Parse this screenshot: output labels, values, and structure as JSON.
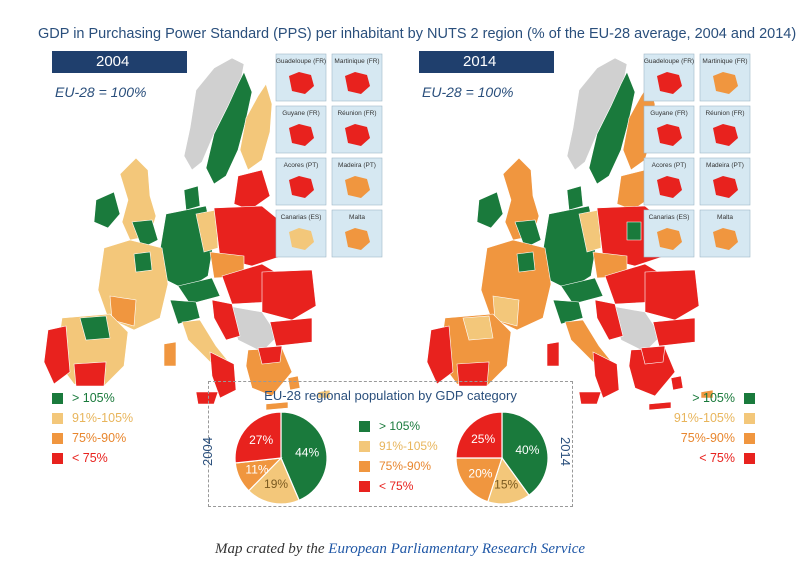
{
  "title": "GDP in Purchasing Power Standard (PPS) per inhabitant by NUTS 2 region (% of the EU-28 average, 2004 and 2014)",
  "colors": {
    "gt105": "#1a7a3c",
    "c91_105": "#f3c77a",
    "c75_90": "#f0963f",
    "lt75": "#e8221e",
    "nodata": "#d0d0d0",
    "inset_bg": "#d6e8f2",
    "badge": "#1f3f6d",
    "text_blue": "#2a4f7c"
  },
  "maps": [
    {
      "year": "2004",
      "note": "EU-28 = 100%",
      "insets": [
        {
          "label": "Guadeloupe (FR)",
          "color": "lt75"
        },
        {
          "label": "Martinique (FR)",
          "color": "lt75"
        },
        {
          "label": "Guyane (FR)",
          "color": "lt75"
        },
        {
          "label": "Réunion (FR)",
          "color": "lt75"
        },
        {
          "label": "Acores (PT)",
          "color": "lt75"
        },
        {
          "label": "Madeira (PT)",
          "color": "c75_90"
        },
        {
          "label": "Canarias (ES)",
          "color": "c91_105"
        },
        {
          "label": "Malta",
          "color": "c75_90"
        }
      ]
    },
    {
      "year": "2014",
      "note": "EU-28 = 100%",
      "insets": [
        {
          "label": "Guadeloupe (FR)",
          "color": "lt75"
        },
        {
          "label": "Martinique (FR)",
          "color": "c75_90"
        },
        {
          "label": "Guyane (FR)",
          "color": "lt75"
        },
        {
          "label": "Réunion (FR)",
          "color": "lt75"
        },
        {
          "label": "Acores (PT)",
          "color": "lt75"
        },
        {
          "label": "Madeira (PT)",
          "color": "lt75"
        },
        {
          "label": "Canarias (ES)",
          "color": "c75_90"
        },
        {
          "label": "Malta",
          "color": "c75_90"
        }
      ]
    }
  ],
  "legend": [
    {
      "label": "> 105%",
      "color": "gt105"
    },
    {
      "label": "91%-105%",
      "color": "c91_105"
    },
    {
      "label": "75%-90%",
      "color": "c75_90"
    },
    {
      "label": "< 75%",
      "color": "lt75"
    }
  ],
  "population": {
    "title": "EU-28 regional population by GDP category",
    "pies": [
      {
        "year": "2004",
        "slices": [
          {
            "category": "gt105",
            "value": 44,
            "label": "44%"
          },
          {
            "category": "c91_105",
            "value": 19,
            "label": "19%"
          },
          {
            "category": "c75_90",
            "value": 11,
            "label": "11%"
          },
          {
            "category": "lt75",
            "value": 27,
            "label": "27%"
          }
        ]
      },
      {
        "year": "2014",
        "slices": [
          {
            "category": "gt105",
            "value": 40,
            "label": "40%"
          },
          {
            "category": "c91_105",
            "value": 15,
            "label": "15%"
          },
          {
            "category": "c75_90",
            "value": 20,
            "label": "20%"
          },
          {
            "category": "lt75",
            "value": 25,
            "label": "25%"
          }
        ]
      }
    ]
  },
  "caption": {
    "prefix": "Map crated by the ",
    "link": "European Parliamentary Research Service"
  }
}
